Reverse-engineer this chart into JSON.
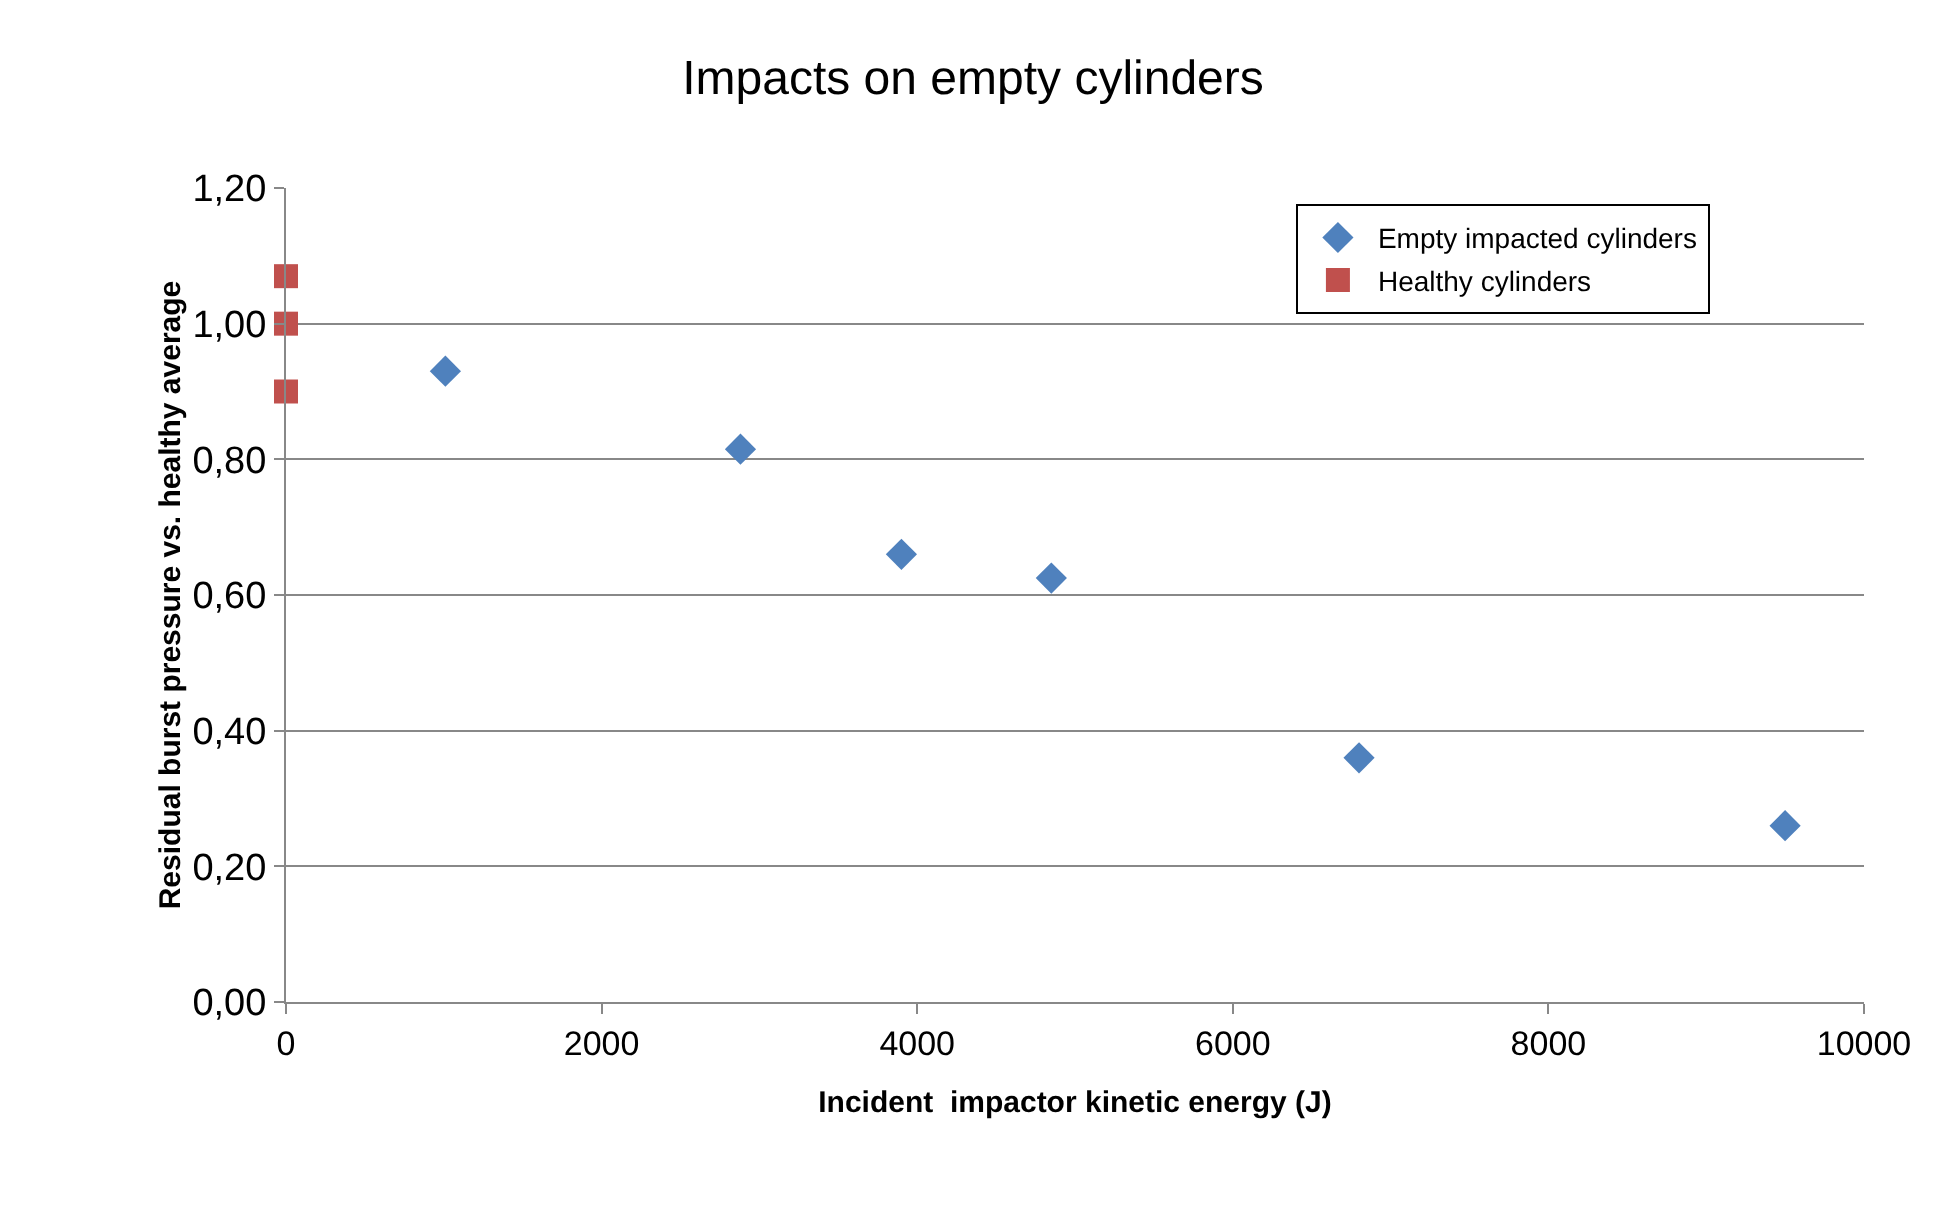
{
  "chart_data": {
    "type": "scatter",
    "title": "Impacts on empty cylinders",
    "xlabel": "Incident  impactor kinetic energy (J)",
    "ylabel": "Residual burst pressure vs. healthy average",
    "series": [
      {
        "name": "Empty impacted cylinders",
        "color": "#4f81bd",
        "marker": "diamond",
        "x": [
          1010,
          2880,
          3900,
          4850,
          6800,
          9500
        ],
        "values": [
          0.93,
          0.815,
          0.66,
          0.625,
          0.36,
          0.26
        ]
      },
      {
        "name": "Healthy cylinders",
        "color": "#c0504d",
        "marker": "square",
        "x": [
          0,
          0,
          0
        ],
        "values": [
          1.07,
          1.0,
          0.9
        ]
      }
    ],
    "xlim": [
      0,
      10000
    ],
    "xticks": [
      0,
      2000,
      4000,
      6000,
      8000,
      10000
    ],
    "ylim": [
      0,
      1.2
    ],
    "yticks": [
      {
        "value": 0,
        "label": "0,00"
      },
      {
        "value": 0.2,
        "label": "0,20"
      },
      {
        "value": 0.4,
        "label": "0,40"
      },
      {
        "value": 0.6,
        "label": "0,60"
      },
      {
        "value": 0.8,
        "label": "0,80"
      },
      {
        "value": 1,
        "label": "1,00"
      },
      {
        "value": 1.2,
        "label": "1,20"
      }
    ],
    "grid": "y",
    "legend": "top right"
  }
}
